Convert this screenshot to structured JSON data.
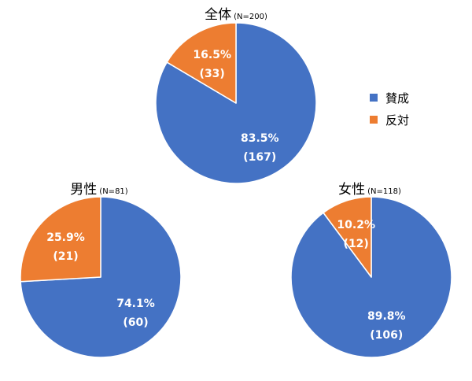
{
  "chart_data": [
    {
      "type": "pie",
      "title": "全体",
      "subtitle": "(N=200)",
      "slices": [
        {
          "name": "賛成",
          "percent": 83.5,
          "count": 167,
          "percent_label": "83.5%",
          "count_label": "(167)"
        },
        {
          "name": "反対",
          "percent": 16.5,
          "count": 33,
          "percent_label": "16.5%",
          "count_label": "(33)"
        }
      ]
    },
    {
      "type": "pie",
      "title": "男性",
      "subtitle": "(N=81)",
      "slices": [
        {
          "name": "賛成",
          "percent": 74.1,
          "count": 60,
          "percent_label": "74.1%",
          "count_label": "(60)"
        },
        {
          "name": "反対",
          "percent": 25.9,
          "count": 21,
          "percent_label": "25.9%",
          "count_label": "(21)"
        }
      ]
    },
    {
      "type": "pie",
      "title": "女性",
      "subtitle": "(N=118)",
      "slices": [
        {
          "name": "賛成",
          "percent": 89.8,
          "count": 106,
          "percent_label": "89.8%",
          "count_label": "(106)"
        },
        {
          "name": "反対",
          "percent": 10.2,
          "count": 12,
          "percent_label": "10.2%",
          "count_label": "(12)"
        }
      ]
    }
  ],
  "legend": {
    "placement": "right",
    "items": [
      {
        "label": "賛成",
        "color": "#4472C4"
      },
      {
        "label": "反対",
        "color": "#ED7D31"
      }
    ]
  },
  "colors": {
    "賛成": "#4472C4",
    "反対": "#ED7D31"
  }
}
